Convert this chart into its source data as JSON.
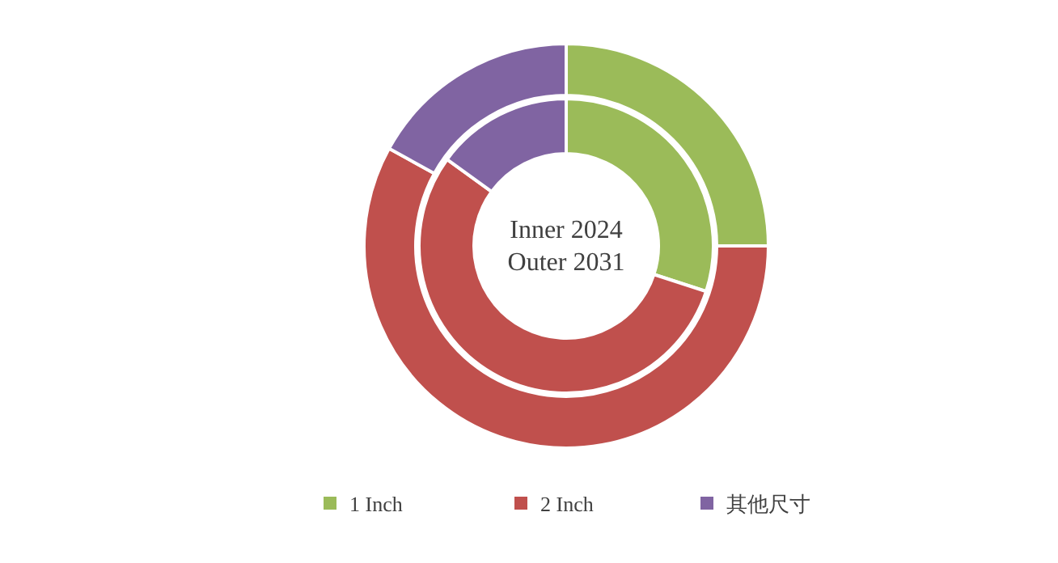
{
  "chart_data": {
    "type": "donut",
    "categories": [
      "1 Inch",
      "2 Inch",
      "其他尺寸"
    ],
    "colors": [
      "#9bbb59",
      "#c0504d",
      "#8064a2"
    ],
    "series": [
      {
        "values": [
          30,
          55,
          15
        ]
      },
      {
        "values": [
          25,
          58,
          17
        ]
      }
    ],
    "annotations": [
      "Inner 2024",
      "Outer 2031"
    ],
    "legend": "bottom"
  }
}
